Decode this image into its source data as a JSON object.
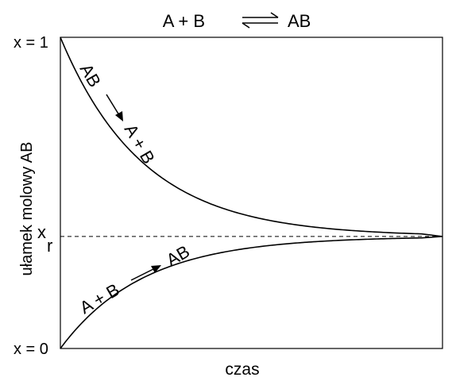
{
  "chart_data": {
    "type": "line",
    "title": {
      "left": "A + B",
      "right": "AB"
    },
    "xlabel": "czas",
    "ylabel": "ułamek molowy  AB",
    "y_ticks": {
      "top": "x = 1",
      "equilibrium_base": "x",
      "equilibrium_sub": "r",
      "bottom": "x = 0"
    },
    "ylim": [
      0,
      1
    ],
    "x_equilibrium": 0.36,
    "grid": false,
    "legend": "none",
    "series": [
      {
        "curve": "decreasing",
        "start": 1,
        "approaches": 0.36,
        "annotation": {
          "from": "AB",
          "to": "A + B"
        }
      },
      {
        "curve": "increasing",
        "start": 0,
        "approaches": 0.36,
        "annotation": {
          "from": "A + B",
          "to": "AB"
        }
      }
    ],
    "colors": {
      "line": "#000000",
      "equilibrium_line": "#000000"
    }
  }
}
